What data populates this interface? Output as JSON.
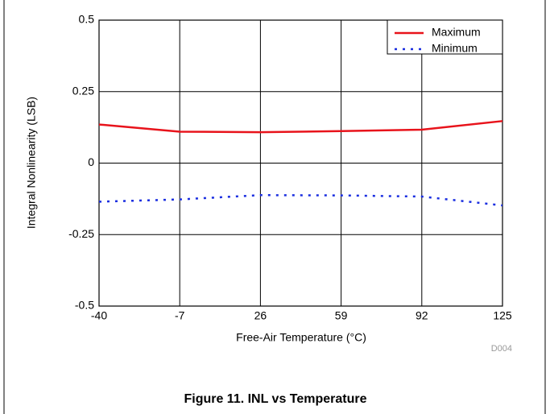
{
  "chart_data": {
    "type": "line",
    "xlabel": "Free-Air Temperature (°C)",
    "ylabel": "Integral Nonlinearity (LSB)",
    "code": "D004",
    "caption": "Figure 11. INL vs Temperature",
    "x": [
      -40,
      -7,
      26,
      59,
      92,
      125
    ],
    "series": [
      {
        "name": "Maximum",
        "color": "#e8131b",
        "dash": "solid",
        "values": [
          0.135,
          0.11,
          0.108,
          0.112,
          0.117,
          0.147
        ]
      },
      {
        "name": "Minimum",
        "color": "#1a2ee0",
        "dash": "dotted",
        "values": [
          -0.135,
          -0.127,
          -0.112,
          -0.113,
          -0.117,
          -0.148
        ]
      }
    ],
    "xlim": [
      -40,
      125
    ],
    "xticks": [
      -40,
      -7,
      26,
      59,
      92,
      125
    ],
    "ylim": [
      -0.5,
      0.5
    ],
    "yticks": [
      -0.5,
      -0.25,
      0,
      0.25,
      0.5
    ],
    "grid": true,
    "legend": "top-right"
  }
}
